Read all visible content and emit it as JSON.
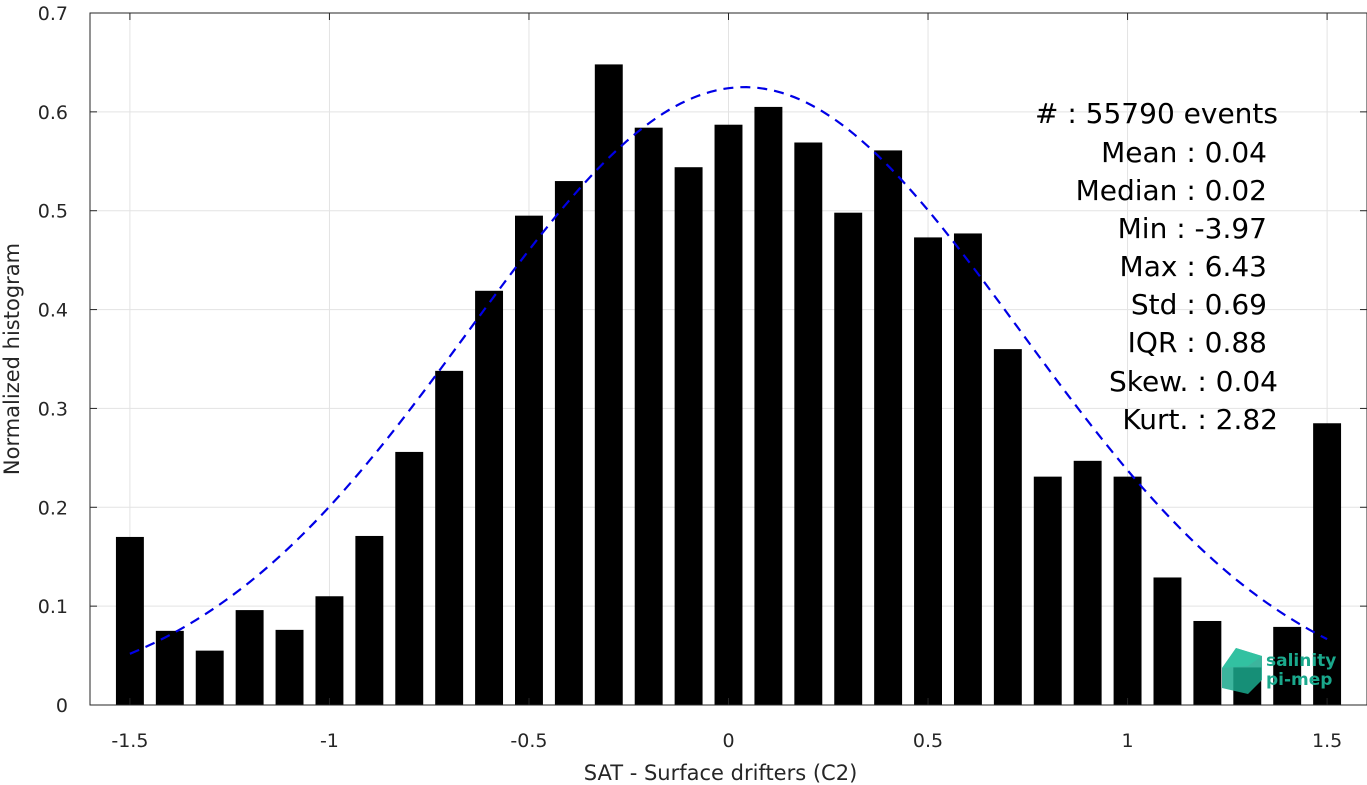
{
  "chart_data": {
    "type": "bar",
    "xlabel": "SAT - Surface drifters (C2)",
    "ylabel": "Normalized histogram",
    "xlim": [
      -1.6,
      1.6
    ],
    "ylim": [
      0,
      0.7
    ],
    "xticks": [
      -1.5,
      -1,
      -0.5,
      0,
      0.5,
      1,
      1.5
    ],
    "xtick_labels": [
      "-1.5",
      "-1",
      "-0.5",
      "0",
      "0.5",
      "1",
      "1.5"
    ],
    "yticks": [
      0,
      0.1,
      0.2,
      0.3,
      0.4,
      0.5,
      0.6,
      0.7
    ],
    "ytick_labels": [
      "0",
      "0.1",
      "0.2",
      "0.3",
      "0.4",
      "0.5",
      "0.6",
      "0.7"
    ],
    "grid": true,
    "bar_width": 0.07,
    "bar_color": "#000000",
    "x": [
      -1.5,
      -1.4,
      -1.3,
      -1.2,
      -1.1,
      -1.0,
      -0.9,
      -0.8,
      -0.7,
      -0.6,
      -0.5,
      -0.4,
      -0.3,
      -0.2,
      -0.1,
      0.0,
      0.1,
      0.2,
      0.3,
      0.4,
      0.5,
      0.6,
      0.7,
      0.8,
      0.9,
      1.0,
      1.1,
      1.2,
      1.3,
      1.4,
      1.5
    ],
    "values": [
      0.17,
      0.075,
      0.055,
      0.096,
      0.076,
      0.11,
      0.171,
      0.256,
      0.338,
      0.419,
      0.495,
      0.53,
      0.648,
      0.584,
      0.544,
      0.587,
      0.605,
      0.569,
      0.498,
      0.561,
      0.473,
      0.477,
      0.36,
      0.231,
      0.247,
      0.231,
      0.129,
      0.085,
      0.038,
      0.079,
      0.285
    ],
    "fit": {
      "type": "gaussian",
      "style": "dashed",
      "color": "#0000e6",
      "amplitude": 0.625,
      "mean": 0.04,
      "sigma": 0.69,
      "x_range": [
        -1.5,
        1.5
      ]
    },
    "annotations": [
      "#  : 55790 events",
      "Mean : 0.04",
      "Median : 0.02",
      "Min : -3.97",
      "Max : 6.43",
      "Std : 0.69",
      "IQR : 0.88",
      "Skew. : 0.04",
      "Kurt. : 2.82"
    ]
  },
  "logo": {
    "line1": "salinity",
    "line2": "pi-mep",
    "color": "#1aa88c"
  }
}
